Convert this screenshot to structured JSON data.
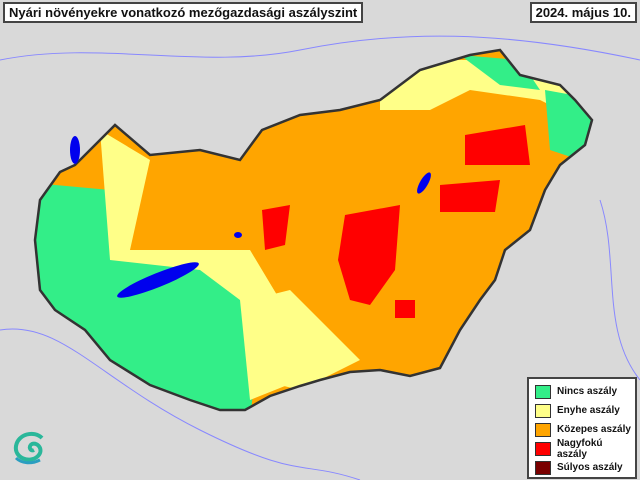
{
  "title": "Nyári növényekre vonatkozó mezőgazdasági aszályszint",
  "date": "2024. május 10.",
  "legend": [
    {
      "label": "Nincs aszály",
      "color": "#33ee88"
    },
    {
      "label": "Enyhe aszály",
      "color": "#ffff88"
    },
    {
      "label": "Közepes aszály",
      "color": "#ffa500"
    },
    {
      "label": "Nagyfokú aszály",
      "color": "#ff0000"
    },
    {
      "label": "Súlyos aszály",
      "color": "#7a0000"
    }
  ],
  "colors": {
    "water": "#0000ee",
    "border": "#333333",
    "background": "#d9d9d9"
  }
}
